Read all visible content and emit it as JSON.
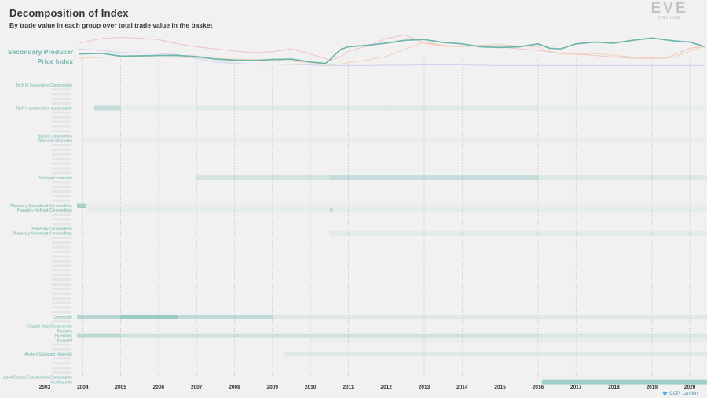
{
  "header": {
    "title": "Decomposition of Index",
    "subtitle": "By trade value in each group over total trade value in the basket"
  },
  "logo": {
    "word": "EVE",
    "sub": "ONLINE"
  },
  "credit": "CCP_Larrikin",
  "colors": {
    "background": "#f1f1f1",
    "index_line": "#6fb5ad",
    "series_pink": "#f0c2c2",
    "series_peach": "#f2cfb6",
    "series_lavender": "#cfd0ea",
    "heat": "#6fb5ad",
    "label_accent": "#6fb5ad",
    "label_faint": "#dcdcdc"
  },
  "chart_data": [
    {
      "type": "line",
      "title": "",
      "label": "Secondary Producer Price Index",
      "label_lines": [
        "Secondary Producer",
        "Price Index"
      ],
      "x": [
        2003.9,
        2004.5,
        2005.0,
        2005.5,
        2006.0,
        2006.5,
        2007.0,
        2007.5,
        2008.0,
        2008.5,
        2009.0,
        2009.5,
        2010.0,
        2010.4,
        2010.5,
        2010.8,
        2011.0,
        2011.5,
        2012.0,
        2012.5,
        2013.0,
        2013.5,
        2014.0,
        2014.5,
        2015.0,
        2015.5,
        2016.0,
        2016.3,
        2016.6,
        2017.0,
        2017.5,
        2018.0,
        2018.5,
        2019.0,
        2019.3,
        2019.6,
        2020.0,
        2020.4
      ],
      "series": [
        {
          "name": "Secondary Producer Price Index",
          "color": "#6fb5ad",
          "values": [
            0.42,
            0.44,
            0.36,
            0.37,
            0.38,
            0.38,
            0.35,
            0.28,
            0.25,
            0.24,
            0.27,
            0.28,
            0.2,
            0.16,
            0.25,
            0.55,
            0.62,
            0.66,
            0.72,
            0.8,
            0.82,
            0.74,
            0.7,
            0.62,
            0.6,
            0.62,
            0.7,
            0.58,
            0.56,
            0.7,
            0.75,
            0.72,
            0.8,
            0.86,
            0.82,
            0.78,
            0.75,
            0.62
          ]
        },
        {
          "color": "#f0c2c2",
          "values": [
            0.72,
            0.85,
            0.88,
            0.86,
            0.82,
            0.7,
            0.62,
            0.56,
            0.5,
            0.46,
            0.48,
            0.56,
            0.42,
            0.3,
            0.24,
            0.35,
            0.5,
            0.64,
            0.85,
            0.95,
            0.72,
            0.64,
            0.62,
            0.66,
            0.62,
            0.56,
            0.52,
            0.48,
            0.44,
            0.42,
            0.38,
            0.34,
            0.3,
            0.3,
            0.3,
            0.4,
            0.58,
            0.62
          ]
        },
        {
          "color": "#f2cfb6",
          "values": [
            0.3,
            0.33,
            0.34,
            0.35,
            0.34,
            0.33,
            0.32,
            0.3,
            0.28,
            0.27,
            0.26,
            0.22,
            0.18,
            0.14,
            0.12,
            0.14,
            0.18,
            0.25,
            0.36,
            0.55,
            0.75,
            0.66,
            0.62,
            0.66,
            0.68,
            0.64,
            0.62,
            0.5,
            0.42,
            0.42,
            0.44,
            0.38,
            0.34,
            0.32,
            0.3,
            0.34,
            0.5,
            0.64
          ]
        },
        {
          "color": "#cfd0ea",
          "values": [
            0.56,
            0.52,
            0.46,
            0.45,
            0.44,
            0.4,
            0.3,
            0.2,
            0.16,
            0.14,
            0.14,
            0.13,
            0.12,
            0.1,
            0.1,
            0.1,
            0.1,
            0.1,
            0.11,
            0.11,
            0.12,
            0.12,
            0.12,
            0.11,
            0.1,
            0.1,
            0.1,
            0.1,
            0.1,
            0.1,
            0.1,
            0.1,
            0.1,
            0.1,
            0.1,
            0.1,
            0.1,
            0.1
          ]
        }
      ]
    },
    {
      "type": "heatmap",
      "xlim": [
        2003,
        2020.5
      ],
      "tick_labels": [
        "2003",
        "2004",
        "2005",
        "2006",
        "2007",
        "2008",
        "2009",
        "2010",
        "2011",
        "2012",
        "2013",
        "2014",
        "2015",
        "2016",
        "2017",
        "2018",
        "2019",
        "2020"
      ],
      "grid": "dashed vertical lines at each year",
      "rows": [
        {
          "label": "Tech III Subsystem Components",
          "shown": true,
          "bands": []
        },
        {
          "label": "",
          "shown": false,
          "bands": []
        },
        {
          "label": "",
          "shown": false,
          "bands": []
        },
        {
          "label": "",
          "shown": false,
          "bands": []
        },
        {
          "label": "",
          "shown": false,
          "bands": []
        },
        {
          "label": "Tech II construction components",
          "shown": true,
          "bands": [
            [
              2004.3,
              2005.0,
              0.35
            ],
            [
              2005.0,
              2007.0,
              0.08
            ],
            [
              2007.0,
              2016.0,
              0.15
            ],
            [
              2016.0,
              2020.5,
              0.06
            ]
          ]
        },
        {
          "label": "",
          "shown": false,
          "bands": []
        },
        {
          "label": "",
          "shown": false,
          "bands": []
        },
        {
          "label": "",
          "shown": false,
          "bands": []
        },
        {
          "label": "",
          "shown": false,
          "bands": []
        },
        {
          "label": "",
          "shown": false,
          "bands": []
        },
        {
          "label": "Station components",
          "shown": true,
          "bands": []
        },
        {
          "label": "Starbase structures",
          "shown": true,
          "bands": [
            [
              2004.0,
              2020.5,
              0.05
            ]
          ]
        },
        {
          "label": "",
          "shown": false,
          "bands": []
        },
        {
          "label": "",
          "shown": false,
          "bands": []
        },
        {
          "label": "",
          "shown": false,
          "bands": []
        },
        {
          "label": "",
          "shown": false,
          "bands": []
        },
        {
          "label": "",
          "shown": false,
          "bands": []
        },
        {
          "label": "",
          "shown": false,
          "bands": []
        },
        {
          "label": "",
          "shown": false,
          "bands": []
        },
        {
          "label": "Salvaged materials",
          "shown": true,
          "bands": [
            [
              2007.0,
              2010.5,
              0.22
            ],
            [
              2010.5,
              2016.0,
              0.32
            ],
            [
              2016.0,
              2020.5,
              0.16
            ]
          ]
        },
        {
          "label": "",
          "shown": false,
          "bands": []
        },
        {
          "label": "",
          "shown": false,
          "bands": []
        },
        {
          "label": "",
          "shown": false,
          "bands": []
        },
        {
          "label": "",
          "shown": false,
          "bands": []
        },
        {
          "label": "",
          "shown": false,
          "bands": []
        },
        {
          "label": "Planetary Specialized Commodities",
          "shown": true,
          "bands": [
            [
              2003.85,
              2004.1,
              0.55
            ],
            [
              2004.1,
              2020.5,
              0.06
            ]
          ]
        },
        {
          "label": "Planetary Refined Commodities",
          "shown": true,
          "bands": [
            [
              2004.1,
              2010.5,
              0.08
            ],
            [
              2010.5,
              2010.6,
              0.35
            ],
            [
              2010.6,
              2020.5,
              0.08
            ]
          ]
        },
        {
          "label": "",
          "shown": false,
          "bands": []
        },
        {
          "label": "",
          "shown": false,
          "bands": []
        },
        {
          "label": "",
          "shown": false,
          "bands": []
        },
        {
          "label": "Planetary Commodities",
          "shown": true,
          "bands": []
        },
        {
          "label": "Planetary Advanced Commodities",
          "shown": true,
          "bands": [
            [
              2010.5,
              2020.5,
              0.1
            ]
          ]
        },
        {
          "label": "",
          "shown": false,
          "bands": []
        },
        {
          "label": "",
          "shown": false,
          "bands": []
        },
        {
          "label": "",
          "shown": false,
          "bands": []
        },
        {
          "label": "",
          "shown": false,
          "bands": []
        },
        {
          "label": "",
          "shown": false,
          "bands": []
        },
        {
          "label": "",
          "shown": false,
          "bands": []
        },
        {
          "label": "",
          "shown": false,
          "bands": []
        },
        {
          "label": "",
          "shown": false,
          "bands": []
        },
        {
          "label": "",
          "shown": false,
          "bands": []
        },
        {
          "label": "",
          "shown": false,
          "bands": []
        },
        {
          "label": "",
          "shown": false,
          "bands": []
        },
        {
          "label": "",
          "shown": false,
          "bands": []
        },
        {
          "label": "",
          "shown": false,
          "bands": []
        },
        {
          "label": "",
          "shown": false,
          "bands": []
        },
        {
          "label": "",
          "shown": false,
          "bands": []
        },
        {
          "label": "",
          "shown": false,
          "bands": []
        },
        {
          "label": "",
          "shown": false,
          "bands": []
        },
        {
          "label": "Commodity",
          "shown": true,
          "bands": [
            [
              2003.85,
              2005.0,
              0.45
            ],
            [
              2005.0,
              2006.5,
              0.65
            ],
            [
              2006.5,
              2009.0,
              0.38
            ],
            [
              2009.0,
              2020.5,
              0.12
            ]
          ]
        },
        {
          "label": "",
          "shown": false,
          "bands": []
        },
        {
          "label": "Capital Ship Components",
          "shown": true,
          "bands": []
        },
        {
          "label": "Boosters",
          "shown": true,
          "bands": []
        },
        {
          "label": "Blueprints",
          "shown": true,
          "bands": [
            [
              2003.85,
              2005.0,
              0.4
            ],
            [
              2005.0,
              2016.0,
              0.25
            ],
            [
              2016.0,
              2020.5,
              0.18
            ]
          ]
        },
        {
          "label": "Blueprint",
          "shown": true,
          "bands": [
            [
              2010.0,
              2020.5,
              0.05
            ]
          ]
        },
        {
          "label": "",
          "shown": false,
          "bands": []
        },
        {
          "label": "",
          "shown": false,
          "bands": []
        },
        {
          "label": "Ancient Salvaged Materials",
          "shown": true,
          "bands": [
            [
              2009.3,
              2020.5,
              0.14
            ]
          ]
        },
        {
          "label": "",
          "shown": false,
          "bands": []
        },
        {
          "label": "",
          "shown": false,
          "bands": []
        },
        {
          "label": "",
          "shown": false,
          "bands": []
        },
        {
          "label": "",
          "shown": false,
          "bands": []
        },
        {
          "label": "sized Capital Construction Components",
          "shown": true,
          "bands": []
        },
        {
          "label": "Accessories",
          "shown": true,
          "bands": [
            [
              2016.1,
              2020.5,
              0.6
            ]
          ]
        }
      ]
    }
  ]
}
